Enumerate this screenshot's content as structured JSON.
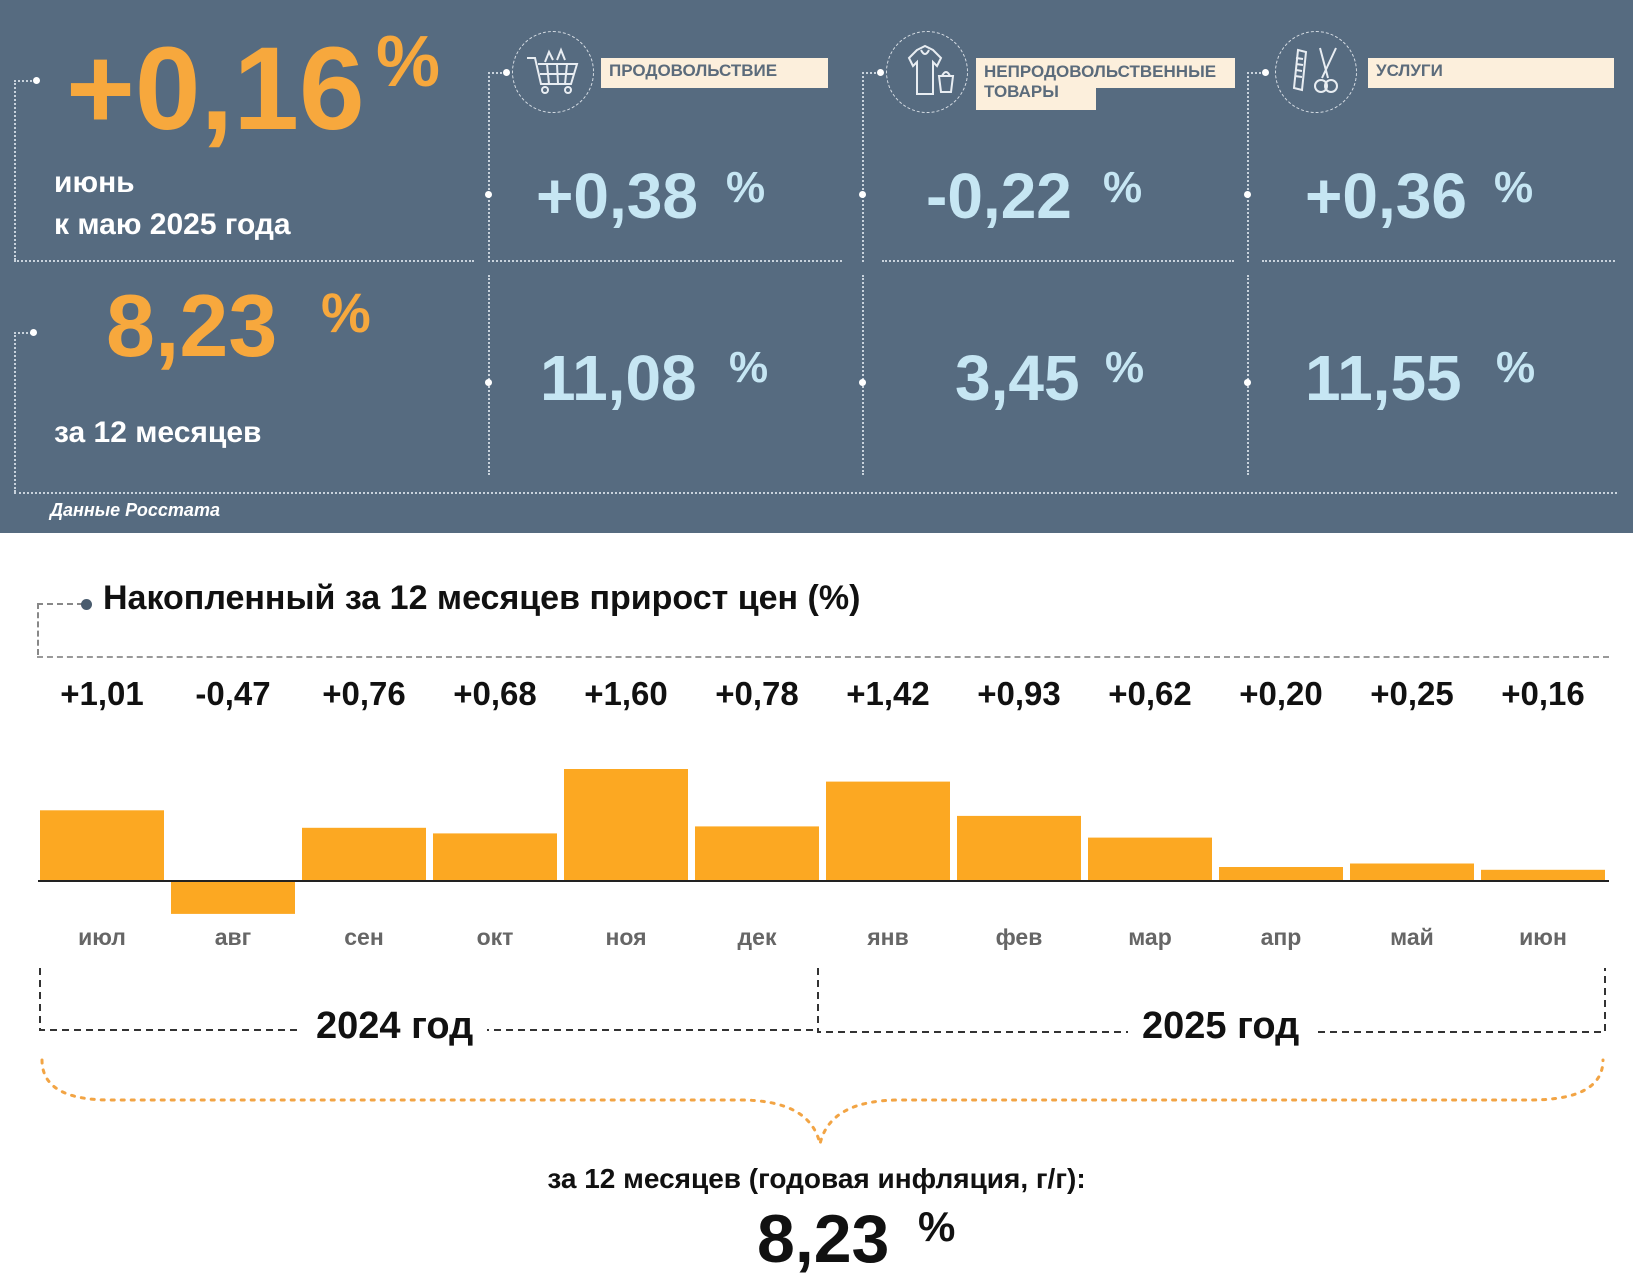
{
  "summary": {
    "monthly": {
      "value": "+0,16",
      "unit": "%",
      "line1": "июнь",
      "line2": "к маю 2025 года"
    },
    "annual": {
      "value": "8,23",
      "unit": "%",
      "label": "за 12 месяцев"
    }
  },
  "categories": [
    {
      "name": "ПРОДОВОЛЬСТВИЕ",
      "icon": "shopping-cart-icon",
      "monthly": "+0,38",
      "annual": "11,08",
      "unit": "%"
    },
    {
      "name": "НЕПРОДОВОЛЬСТВЕННЫЕ ТОВАРЫ",
      "icon": "clothing-icon",
      "monthly": "-0,22",
      "annual": "3,45",
      "unit": "%"
    },
    {
      "name": "УСЛУГИ",
      "icon": "scissors-comb-icon",
      "monthly": "+0,36",
      "annual": "11,55",
      "unit": "%"
    }
  ],
  "source": "Данные Росстата",
  "colors": {
    "panel": "#566b80",
    "orange": "#f7a83d",
    "light_blue": "#c6e6f3",
    "bar": "#fca822"
  },
  "chart_data": {
    "type": "bar",
    "title": "Накопленный за 12 месяцев прирост цен (%)",
    "categories": [
      "июл",
      "авг",
      "сен",
      "окт",
      "ноя",
      "дек",
      "янв",
      "фев",
      "мар",
      "апр",
      "май",
      "июн"
    ],
    "values": [
      1.01,
      -0.47,
      0.76,
      0.68,
      1.6,
      0.78,
      1.42,
      0.93,
      0.62,
      0.2,
      0.25,
      0.16
    ],
    "value_labels": [
      "+1,01",
      "-0,47",
      "+0,76",
      "+0,68",
      "+1,60",
      "+0,78",
      "+1,42",
      "+0,93",
      "+0,62",
      "+0,20",
      "+0,25",
      "+0,16"
    ],
    "years": [
      "2024 год",
      "2025 год"
    ],
    "total_label": "за 12 месяцев (годовая инфляция, г/г):",
    "total_value": "8,23",
    "total_unit": "%"
  }
}
